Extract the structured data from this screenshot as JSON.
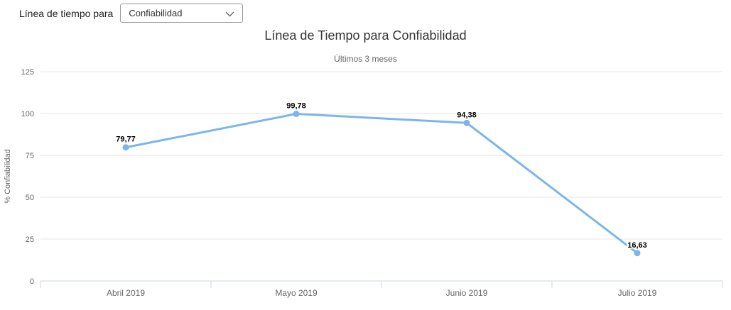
{
  "controls": {
    "label": "Línea de tiempo para",
    "select": {
      "value": "Confiabilidad"
    }
  },
  "chart_data": {
    "type": "line",
    "title": "Línea de Tiempo para Confiabilidad",
    "subtitle": "Últimos 3 meses",
    "ylabel": "% Confiabilidad",
    "categories": [
      "Abril 2019",
      "Mayo 2019",
      "Junio 2019",
      "Julio 2019"
    ],
    "values": [
      79.77,
      99.78,
      94.38,
      16.63
    ],
    "value_labels": [
      "79,77",
      "99,78",
      "94,38",
      "16,63"
    ],
    "yticks": [
      0,
      25,
      50,
      75,
      100,
      125
    ],
    "ylim": [
      0,
      125
    ],
    "grid": true,
    "legend": "none",
    "colors": {
      "line": "#7cb5ec",
      "marker": "#7cb5ec",
      "grid": "#e6e6e6",
      "axis_line": "#ccd6eb",
      "tick_label": "#666666",
      "data_label": "#000000",
      "title": "#333333",
      "subtitle": "#666666"
    }
  }
}
